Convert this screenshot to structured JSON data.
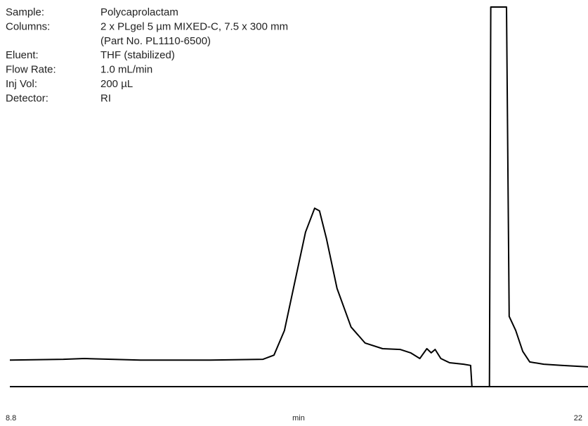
{
  "chart_data": {
    "type": "line",
    "info": [
      {
        "label": "Sample:",
        "text": "Polycaprolactam"
      },
      {
        "label": "Columns:",
        "text": "2 x PLgel 5 µm MIXED-C, 7.5 x 300 mm"
      },
      {
        "text": "(Part No. PL1110-6500)"
      },
      {
        "label": "Eluent:",
        "text": "THF (stabilized)"
      },
      {
        "label": "Flow Rate:",
        "text": "1.0 mL/min"
      },
      {
        "label": "Inj Vol:",
        "text": "200 µL"
      },
      {
        "label": "Detector:",
        "text": "RI"
      }
    ],
    "xlabel": "min",
    "xlim": [
      8.8,
      22
    ],
    "xticks": [
      8.8,
      22
    ],
    "ylim": [
      0,
      100
    ],
    "x": [
      8.8,
      10.02,
      10.5,
      11.78,
      13.38,
      14.58,
      14.83,
      15.07,
      15.31,
      15.55,
      15.76,
      15.87,
      16.03,
      16.27,
      16.59,
      16.91,
      17.31,
      17.71,
      17.95,
      18.16,
      18.32,
      18.42,
      18.51,
      18.64,
      18.84,
      19.16,
      19.32,
      19.35,
      19.75,
      19.78,
      20.14,
      20.2,
      20.35,
      20.51,
      20.67,
      20.99,
      21.39,
      22
    ],
    "series": [
      {
        "color": "#000000",
        "values": [
          7.0,
          7.2,
          7.4,
          7.0,
          7.0,
          7.2,
          8.3,
          14.8,
          27.8,
          40.7,
          47.0,
          46.3,
          38.9,
          25.9,
          15.7,
          11.5,
          10.0,
          9.8,
          8.9,
          7.4,
          10.0,
          8.9,
          9.8,
          7.4,
          6.3,
          5.9,
          5.6,
          0,
          0,
          100,
          100,
          18.5,
          14.8,
          9.3,
          6.5,
          5.9,
          5.6,
          5.2
        ]
      }
    ]
  }
}
